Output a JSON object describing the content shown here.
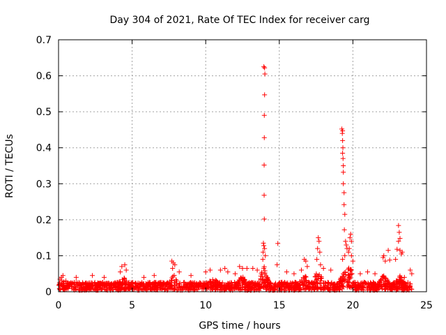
{
  "chart_data": {
    "type": "scatter",
    "title": "Day 304 of 2021, Rate Of TEC Index for receiver carg",
    "xlabel": "GPS time / hours",
    "ylabel": "ROTI / TECUs",
    "xlim": [
      0,
      25
    ],
    "ylim": [
      0,
      0.7
    ],
    "xticks": [
      0,
      5,
      10,
      15,
      20,
      25
    ],
    "yticks": [
      0,
      0.1,
      0.2,
      0.3,
      0.4,
      0.5,
      0.6,
      0.7
    ],
    "grid": true,
    "marker": "+",
    "color": "#ff0000",
    "series": [
      {
        "points": [
          [
            13.95,
            0.625
          ],
          [
            14.0,
            0.622
          ],
          [
            14.02,
            0.605
          ],
          [
            14.0,
            0.547
          ],
          [
            13.98,
            0.49
          ],
          [
            13.98,
            0.428
          ],
          [
            13.97,
            0.352
          ],
          [
            13.97,
            0.268
          ],
          [
            13.98,
            0.202
          ],
          [
            13.92,
            0.135
          ],
          [
            13.95,
            0.128
          ],
          [
            14.0,
            0.12
          ],
          [
            13.9,
            0.11
          ],
          [
            14.05,
            0.1
          ],
          [
            13.88,
            0.09
          ],
          [
            14.9,
            0.134
          ],
          [
            14.85,
            0.075
          ],
          [
            19.25,
            0.452
          ],
          [
            19.3,
            0.447
          ],
          [
            19.28,
            0.44
          ],
          [
            19.3,
            0.42
          ],
          [
            19.32,
            0.4
          ],
          [
            19.3,
            0.385
          ],
          [
            19.33,
            0.37
          ],
          [
            19.35,
            0.35
          ],
          [
            19.35,
            0.332
          ],
          [
            19.35,
            0.3
          ],
          [
            19.4,
            0.275
          ],
          [
            19.4,
            0.242
          ],
          [
            19.45,
            0.215
          ],
          [
            19.42,
            0.172
          ],
          [
            19.5,
            0.14
          ],
          [
            19.55,
            0.13
          ],
          [
            19.6,
            0.12
          ],
          [
            19.45,
            0.1
          ],
          [
            19.7,
            0.11
          ],
          [
            19.3,
            0.09
          ],
          [
            19.85,
            0.16
          ],
          [
            19.8,
            0.15
          ],
          [
            19.9,
            0.14
          ],
          [
            19.75,
            0.12
          ],
          [
            19.9,
            0.1
          ],
          [
            20.0,
            0.085
          ],
          [
            17.65,
            0.15
          ],
          [
            17.7,
            0.14
          ],
          [
            17.6,
            0.12
          ],
          [
            17.75,
            0.11
          ],
          [
            17.55,
            0.09
          ],
          [
            17.8,
            0.075
          ],
          [
            16.7,
            0.09
          ],
          [
            16.8,
            0.085
          ],
          [
            16.9,
            0.07
          ],
          [
            16.5,
            0.06
          ],
          [
            22.1,
            0.1
          ],
          [
            22.05,
            0.095
          ],
          [
            22.2,
            0.085
          ],
          [
            22.4,
            0.115
          ],
          [
            22.5,
            0.088
          ],
          [
            23.1,
            0.184
          ],
          [
            23.15,
            0.165
          ],
          [
            23.2,
            0.148
          ],
          [
            23.1,
            0.14
          ],
          [
            23.2,
            0.115
          ],
          [
            23.35,
            0.11
          ],
          [
            23.3,
            0.105
          ],
          [
            22.9,
            0.09
          ],
          [
            23.0,
            0.118
          ],
          [
            23.9,
            0.06
          ],
          [
            24.0,
            0.05
          ],
          [
            4.3,
            0.07
          ],
          [
            4.5,
            0.075
          ],
          [
            4.6,
            0.06
          ],
          [
            4.2,
            0.055
          ],
          [
            7.7,
            0.085
          ],
          [
            7.8,
            0.08
          ],
          [
            7.9,
            0.075
          ],
          [
            7.75,
            0.065
          ],
          [
            8.2,
            0.055
          ],
          [
            10.0,
            0.055
          ],
          [
            10.3,
            0.06
          ],
          [
            11.0,
            0.06
          ],
          [
            11.3,
            0.065
          ],
          [
            11.5,
            0.055
          ],
          [
            12.3,
            0.07
          ],
          [
            12.5,
            0.065
          ],
          [
            12.8,
            0.065
          ],
          [
            13.2,
            0.065
          ],
          [
            13.5,
            0.06
          ],
          [
            15.5,
            0.055
          ],
          [
            16.0,
            0.05
          ],
          [
            18.0,
            0.065
          ],
          [
            18.5,
            0.06
          ],
          [
            21.0,
            0.055
          ],
          [
            0.05,
            0.02
          ],
          [
            0.1,
            0.035
          ],
          [
            0.2,
            0.04
          ],
          [
            0.3,
            0.045
          ],
          [
            0.5,
            0.03
          ],
          [
            1.2,
            0.04
          ],
          [
            2.3,
            0.045
          ],
          [
            3.1,
            0.04
          ],
          [
            5.8,
            0.04
          ],
          [
            6.5,
            0.045
          ],
          [
            9.0,
            0.045
          ],
          [
            12.0,
            0.05
          ],
          [
            20.5,
            0.05
          ],
          [
            21.5,
            0.05
          ],
          [
            23.5,
            0.04
          ]
        ]
      }
    ]
  }
}
